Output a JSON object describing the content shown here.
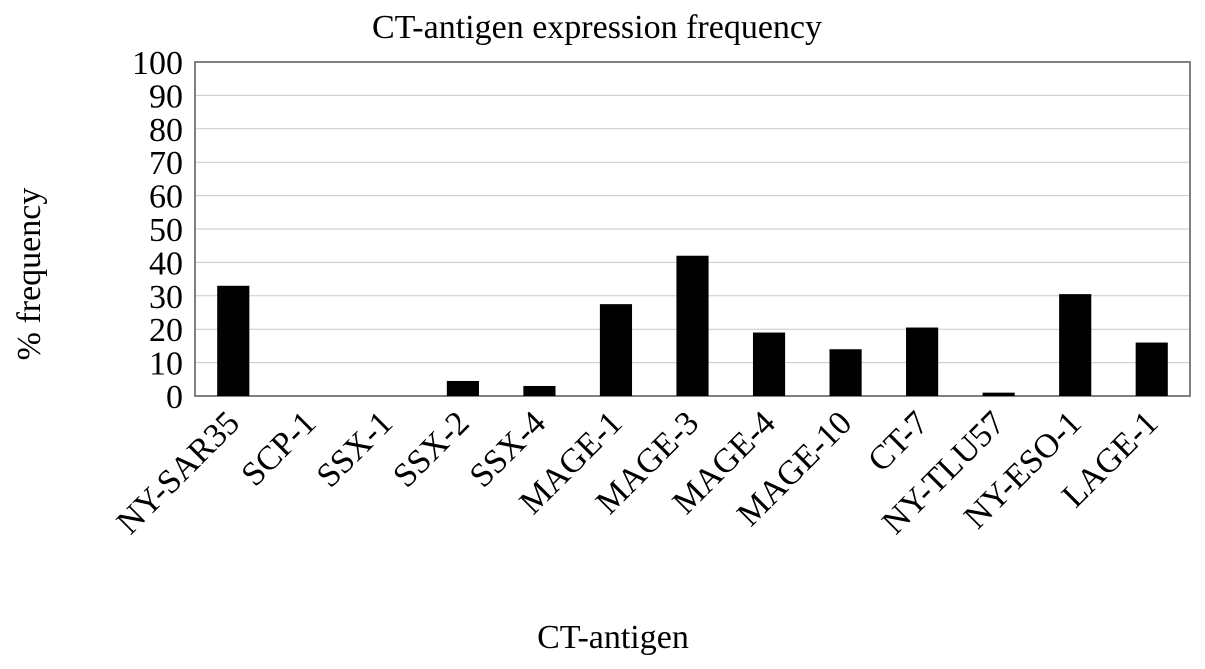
{
  "chart_data": {
    "type": "bar",
    "title": "CT-antigen expression frequency",
    "xlabel": "CT-antigen",
    "ylabel": "% frequency",
    "ylim": [
      0,
      100
    ],
    "yticks": [
      "0",
      "10",
      "20",
      "30",
      "40",
      "50",
      "60",
      "70",
      "80",
      "90",
      "100"
    ],
    "grid": true,
    "categories": [
      "NY-SAR35",
      "SCP-1",
      "SSX-1",
      "SSX-2",
      "SSX-4",
      "MAGE-1",
      "MAGE-3",
      "MAGE-4",
      "MAGE-10",
      "CT-7",
      "NY-TLU57",
      "NY-ESO-1",
      "LAGE-1"
    ],
    "values": [
      33,
      0,
      0,
      4.5,
      3,
      27.5,
      42,
      19,
      14,
      20.5,
      1,
      30.5,
      16
    ],
    "colors": {
      "bar": "#000000",
      "grid": "#c8c8c8",
      "frame": "#808080"
    }
  }
}
